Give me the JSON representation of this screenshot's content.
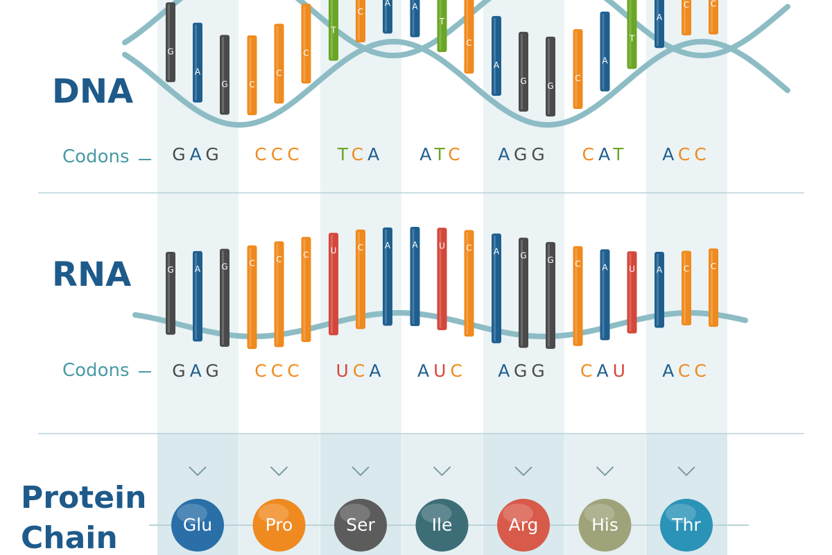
{
  "dna": {
    "title": "DNA",
    "codons_label": "Codons",
    "codons": [
      [
        "G",
        "A",
        "G"
      ],
      [
        "C",
        "C",
        "C"
      ],
      [
        "T",
        "C",
        "A"
      ],
      [
        "A",
        "T",
        "C"
      ],
      [
        "A",
        "G",
        "G"
      ],
      [
        "C",
        "A",
        "T"
      ],
      [
        "A",
        "C",
        "C"
      ]
    ]
  },
  "rna": {
    "title": "RNA",
    "codons_label": "Codons",
    "codons": [
      [
        "G",
        "A",
        "G"
      ],
      [
        "C",
        "C",
        "C"
      ],
      [
        "U",
        "C",
        "A"
      ],
      [
        "A",
        "U",
        "C"
      ],
      [
        "A",
        "G",
        "G"
      ],
      [
        "C",
        "A",
        "U"
      ],
      [
        "A",
        "C",
        "C"
      ]
    ]
  },
  "protein": {
    "title": "Protein Chain",
    "amino_acids": [
      "Glu",
      "Pro",
      "Ser",
      "Ile",
      "Arg",
      "His",
      "Thr"
    ]
  }
}
